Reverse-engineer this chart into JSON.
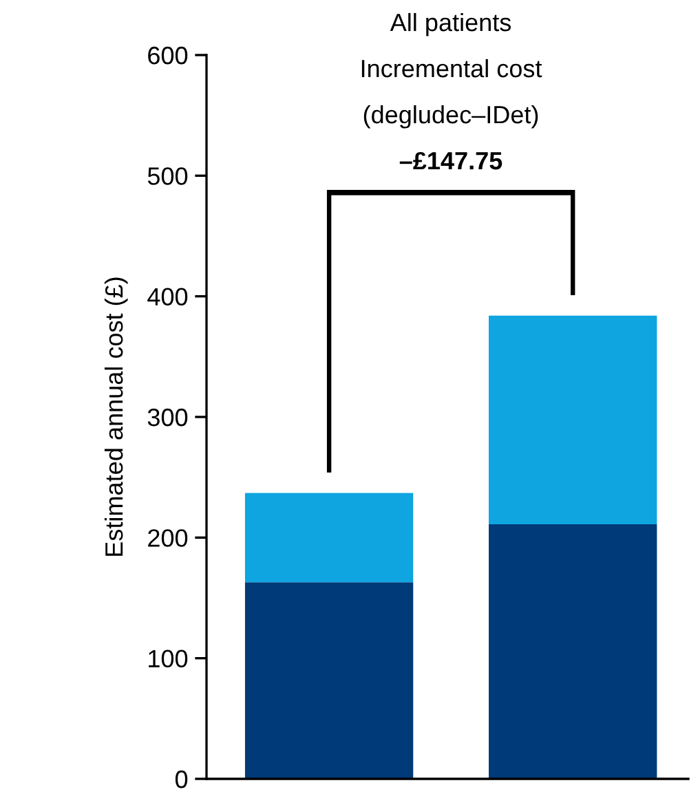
{
  "chart_data": {
    "type": "bar",
    "stacked": true,
    "categories": [
      null,
      null
    ],
    "series": [
      {
        "color": "#003a78",
        "values": [
          163,
          211
        ]
      },
      {
        "color": "#0ea5e0",
        "values": [
          74,
          173
        ]
      }
    ],
    "ylabel": "Estimated annual cost (£)",
    "ylim": [
      0,
      600
    ],
    "yticks": [
      0,
      100,
      200,
      300,
      400,
      500,
      600
    ],
    "tick_labels": "y",
    "grid": false,
    "legend": false,
    "annotations": [
      "All patients",
      "Incremental cost",
      "(degludec–IDet)",
      "–£147.75"
    ]
  }
}
